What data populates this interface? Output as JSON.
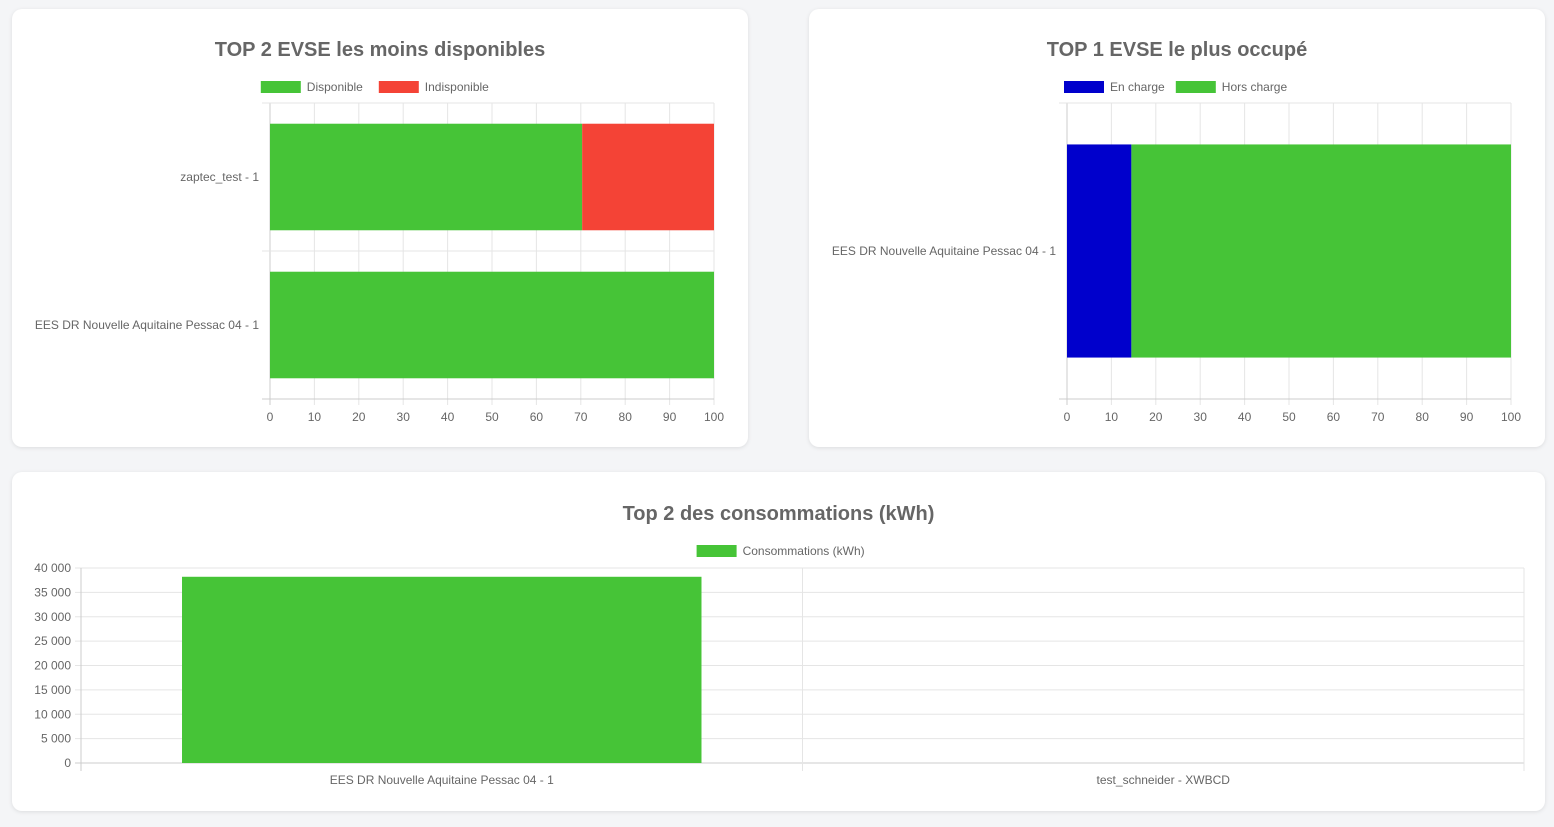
{
  "colors": {
    "green": "#46c437",
    "red": "#f44336",
    "blue": "#0000cc",
    "grid": "#e5e5e5",
    "axis": "#cccccc",
    "text": "#666666"
  },
  "chart_data": [
    {
      "id": "avail",
      "type": "bar",
      "orientation": "horizontal",
      "stacked": true,
      "title": "TOP 2 EVSE les moins disponibles",
      "categories": [
        "zaptec_test - 1",
        "EES DR Nouvelle Aquitaine Pessac 04 - 1"
      ],
      "series": [
        {
          "name": "Disponible",
          "color": "#46c437",
          "values": [
            70.3,
            100
          ]
        },
        {
          "name": "Indisponible",
          "color": "#f44336",
          "values": [
            29.7,
            0
          ]
        }
      ],
      "xlim": [
        0,
        100
      ],
      "ticks": [
        0,
        10,
        20,
        30,
        40,
        50,
        60,
        70,
        80,
        90,
        100
      ],
      "legend": "top",
      "grid": true
    },
    {
      "id": "busy",
      "type": "bar",
      "orientation": "horizontal",
      "stacked": true,
      "title": "TOP 1 EVSE le plus occupé",
      "categories": [
        "EES DR Nouvelle Aquitaine Pessac 04 - 1"
      ],
      "series": [
        {
          "name": "En charge",
          "color": "#0000cc",
          "values": [
            14.5
          ]
        },
        {
          "name": "Hors charge",
          "color": "#46c437",
          "values": [
            85.5
          ]
        }
      ],
      "xlim": [
        0,
        100
      ],
      "ticks": [
        0,
        10,
        20,
        30,
        40,
        50,
        60,
        70,
        80,
        90,
        100
      ],
      "legend": "top",
      "grid": true
    },
    {
      "id": "cons",
      "type": "bar",
      "orientation": "vertical",
      "stacked": false,
      "title": "Top 2 des consommations (kWh)",
      "categories": [
        "EES DR Nouvelle Aquitaine Pessac 04 - 1",
        "test_schneider - XWBCD"
      ],
      "series": [
        {
          "name": "Consommations (kWh)",
          "color": "#46c437",
          "values": [
            38200,
            0
          ]
        }
      ],
      "ylim": [
        0,
        40000
      ],
      "ticks": [
        0,
        5000,
        10000,
        15000,
        20000,
        25000,
        30000,
        35000,
        40000
      ],
      "tick_labels": [
        "0",
        "5 000",
        "10 000",
        "15 000",
        "20 000",
        "25 000",
        "30 000",
        "35 000",
        "40 000"
      ],
      "legend": "top",
      "grid": true
    }
  ]
}
